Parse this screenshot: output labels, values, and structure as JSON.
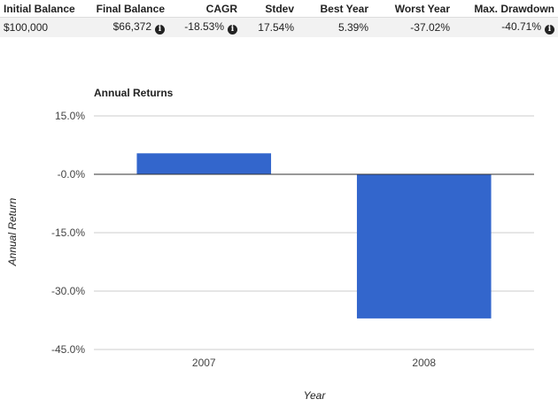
{
  "summary": {
    "headers": [
      "Initial Balance",
      "Final Balance",
      "CAGR",
      "Stdev",
      "Best Year",
      "Worst Year",
      "Max. Drawdown"
    ],
    "values": [
      "$100,000",
      "$66,372",
      "-18.53%",
      "17.54%",
      "5.39%",
      "-37.02%",
      "-40.71%"
    ],
    "info_icon": "i"
  },
  "chart_data": {
    "type": "bar",
    "title": "Annual Returns",
    "xlabel": "Year",
    "ylabel": "Annual Return",
    "categories": [
      "2007",
      "2008"
    ],
    "values": [
      5.39,
      -37.02
    ],
    "ylim": [
      -45,
      15
    ],
    "yticks": [
      15,
      0,
      -15,
      -30,
      -45
    ],
    "ytick_labels": [
      "15.0%",
      "-0.0%",
      "-15.0%",
      "-30.0%",
      "-45.0%"
    ],
    "grid": true,
    "bar_color": "#3366cc",
    "grid_color": "#cccccc",
    "zero_line_color": "#333333"
  }
}
